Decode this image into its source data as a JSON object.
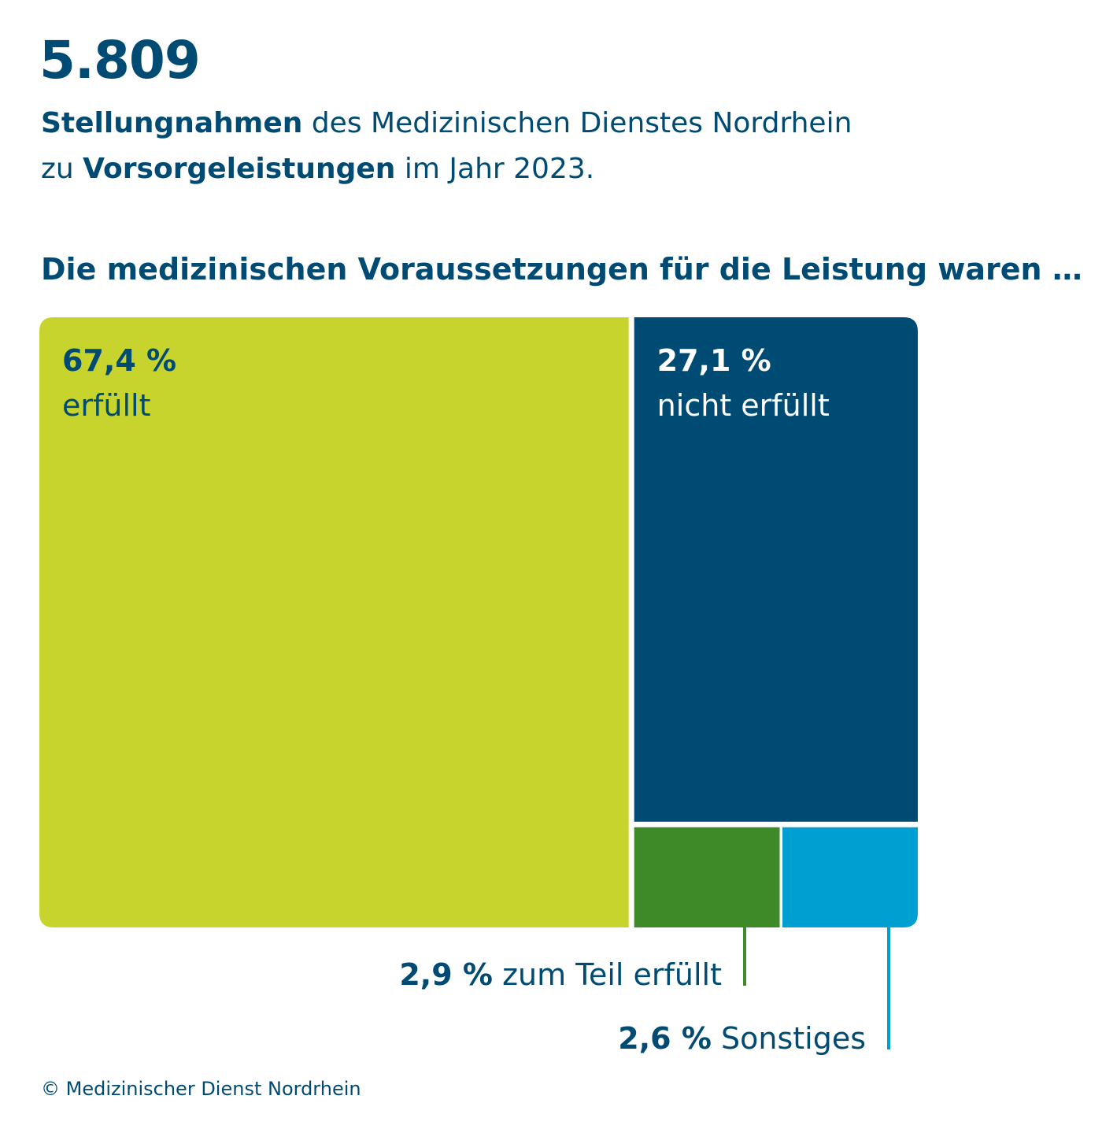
{
  "header": {
    "total": "5.809",
    "line1_bold": "Stellungnahmen",
    "line1_rest": " des Medizinischen Dienstes Nordrhein",
    "line2_pre": "zu ",
    "line2_bold": "Vorsorgeleistungen",
    "line2_rest": " im Jahr 2023."
  },
  "question": "Die medizinischen Voraussetzungen für die Leistung waren …",
  "credit": "© Medizinischer Dienst Nordrhein",
  "colors": {
    "text": "#004b73",
    "erfuellt": "#c8d42e",
    "nicht_erfuellt": "#004b73",
    "zum_teil": "#3f8a28",
    "sonstiges": "#009fd1"
  },
  "chart_data": {
    "type": "treemap",
    "unit": "%",
    "items": [
      {
        "label": "erfüllt",
        "value": 67.4,
        "value_text": "67,4 %",
        "color": "#c8d42e"
      },
      {
        "label": "nicht erfüllt",
        "value": 27.1,
        "value_text": "27,1 %",
        "color": "#004b73"
      },
      {
        "label": "zum Teil erfüllt",
        "value": 2.9,
        "value_text": "2,9 %",
        "color": "#3f8a28"
      },
      {
        "label": "Sonstiges",
        "value": 2.6,
        "value_text": "2,6 %",
        "color": "#009fd1"
      }
    ]
  }
}
